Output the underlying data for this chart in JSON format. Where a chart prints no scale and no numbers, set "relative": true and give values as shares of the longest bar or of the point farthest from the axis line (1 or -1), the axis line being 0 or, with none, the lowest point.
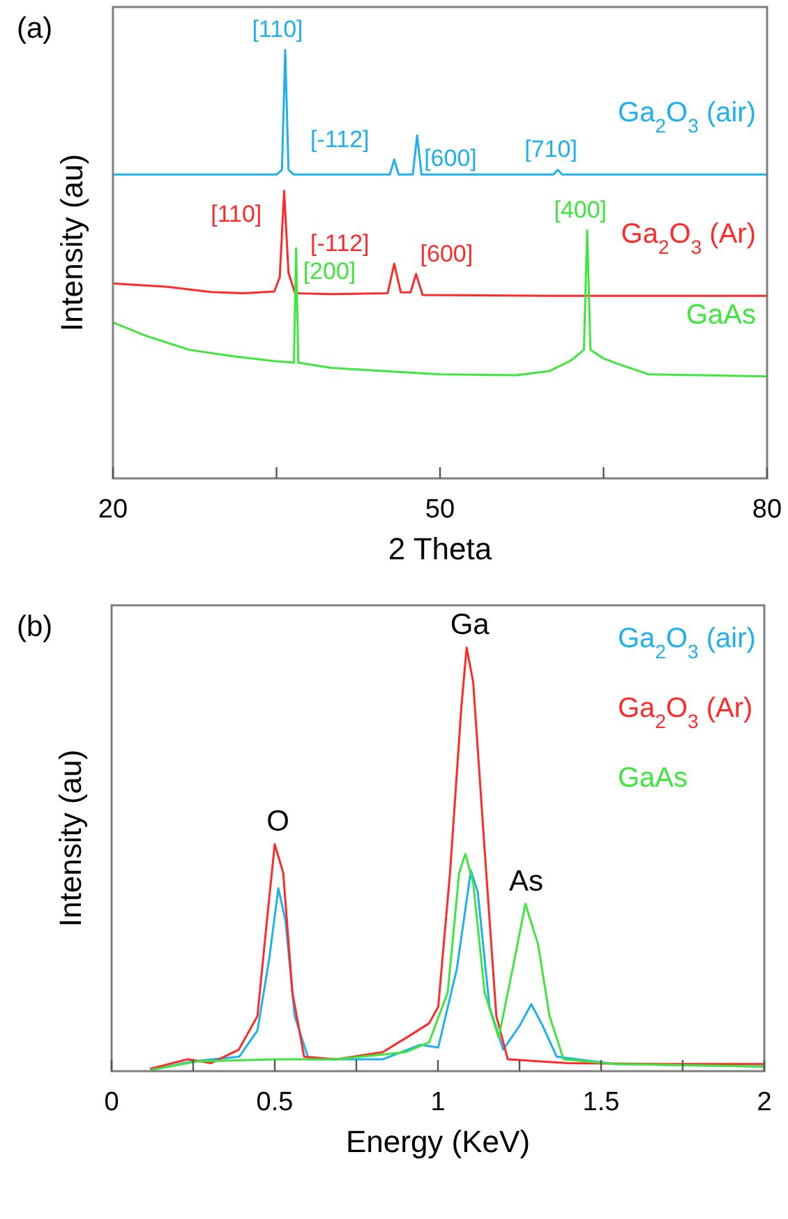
{
  "chart_data": [
    {
      "type": "line",
      "title": "(a)",
      "xlabel": "2 Theta",
      "ylabel": "Intensity (au)",
      "relative": true,
      "xlim": [
        20,
        80
      ],
      "xticks": [
        20,
        {
          "value": 35,
          "label": null
        },
        50,
        {
          "value": 65,
          "label": null
        },
        80
      ],
      "line_style": "solid",
      "marker": "none",
      "series": [
        {
          "name": "Ga$_{2}$O$_{3}$ (air)",
          "color": "#1fb0ee",
          "x": [
            20,
            35.0,
            35.5,
            35.8,
            36.1,
            36.6,
            45.4,
            45.8,
            46.2,
            47.5,
            47.9,
            48.3,
            60.4,
            60.8,
            61.2,
            80
          ],
          "values": [
            0.709,
            0.709,
            0.72,
            1.0,
            0.72,
            0.709,
            0.709,
            0.744,
            0.709,
            0.709,
            0.8,
            0.709,
            0.709,
            0.72,
            0.709,
            0.709
          ]
        },
        {
          "name": "Ga$_{2}$O$_{3}$ (Ar)",
          "color": "#ff2a2a",
          "x": [
            20,
            25,
            29,
            32,
            34.8,
            35.3,
            35.7,
            36.1,
            36.7,
            40,
            45.2,
            45.8,
            46.4,
            47.3,
            47.8,
            48.4,
            60,
            80
          ],
          "values": [
            0.455,
            0.447,
            0.435,
            0.432,
            0.436,
            0.47,
            0.671,
            0.48,
            0.432,
            0.43,
            0.432,
            0.501,
            0.434,
            0.434,
            0.477,
            0.428,
            0.426,
            0.426
          ]
        },
        {
          "name": "GaAs",
          "color": "#3ee63e",
          "x": [
            20,
            23,
            27,
            31,
            34.6,
            36.6,
            36.8,
            37.0,
            40,
            45,
            50,
            57,
            60,
            62,
            63.2,
            63.5,
            63.8,
            65,
            66.1,
            69.1,
            80
          ],
          "values": [
            0.364,
            0.333,
            0.3,
            0.285,
            0.274,
            0.27,
            0.537,
            0.27,
            0.258,
            0.25,
            0.243,
            0.241,
            0.25,
            0.275,
            0.3,
            0.579,
            0.3,
            0.28,
            0.269,
            0.243,
            0.238
          ]
        }
      ],
      "annotations": [
        {
          "text": "[110]",
          "x": 35.8,
          "y": 1.0
        },
        {
          "text": "[-112]",
          "x": 45.8,
          "y": 0.744
        },
        {
          "text": "[600]",
          "x": 47.9,
          "y": 0.8
        },
        {
          "text": "[710]",
          "x": 60.8,
          "y": 0.72
        },
        {
          "text": "[110]",
          "x": 35.7,
          "y": 0.671
        },
        {
          "text": "[-112]",
          "x": 45.8,
          "y": 0.501
        },
        {
          "text": "[600]",
          "x": 47.8,
          "y": 0.477
        },
        {
          "text": "[200]",
          "x": 36.8,
          "y": 0.537
        },
        {
          "text": "[400]",
          "x": 63.5,
          "y": 0.579
        }
      ]
    },
    {
      "type": "line",
      "title": "(b)",
      "xlabel": "Energy  (KeV)",
      "ylabel": "Intensity  (au)",
      "relative": true,
      "xlim": [
        0,
        2
      ],
      "xticks": [
        0,
        {
          "value": 0.25,
          "label": null
        },
        0.5,
        {
          "value": 0.75,
          "label": null
        },
        1,
        {
          "value": 1.25,
          "label": null
        },
        1.5,
        {
          "value": 1.75,
          "label": null
        },
        2
      ],
      "legend": "top right",
      "line_style": "solid",
      "marker": "none",
      "series": [
        {
          "name": "Ga$_{2}$O$_{3}$ (air)",
          "color": "#1fb0ee",
          "x": [
            0.121,
            0.249,
            0.391,
            0.447,
            0.483,
            0.511,
            0.533,
            0.561,
            0.604,
            0.831,
            0.945,
            1.001,
            1.058,
            1.101,
            1.122,
            1.158,
            1.2,
            1.25,
            1.286,
            1.321,
            1.364,
            1.541,
            1.996
          ],
          "values": [
            0.003,
            0.023,
            0.034,
            0.096,
            0.265,
            0.432,
            0.355,
            0.13,
            0.028,
            0.028,
            0.062,
            0.056,
            0.242,
            0.474,
            0.423,
            0.152,
            0.051,
            0.107,
            0.158,
            0.107,
            0.034,
            0.017,
            0.011
          ]
        },
        {
          "name": "Ga$_{2}$O$_{3}$ (Ar)",
          "color": "#ff2a2a",
          "x": [
            0.12,
            0.234,
            0.305,
            0.39,
            0.447,
            0.476,
            0.5,
            0.526,
            0.554,
            0.59,
            0.689,
            0.831,
            0.916,
            0.973,
            1.001,
            1.037,
            1.072,
            1.088,
            1.108,
            1.143,
            1.179,
            1.214,
            1.399,
            1.683,
            1.996
          ],
          "values": [
            0.006,
            0.028,
            0.019,
            0.051,
            0.13,
            0.355,
            0.536,
            0.468,
            0.186,
            0.034,
            0.028,
            0.045,
            0.085,
            0.113,
            0.152,
            0.468,
            0.862,
            1.0,
            0.919,
            0.524,
            0.13,
            0.028,
            0.019,
            0.017,
            0.017
          ]
        },
        {
          "name": "GaAs",
          "color": "#3ee63e",
          "x": [
            0.121,
            0.263,
            0.5,
            0.689,
            0.902,
            0.973,
            1.03,
            1.065,
            1.084,
            1.108,
            1.143,
            1.186,
            1.229,
            1.268,
            1.307,
            1.342,
            1.385,
            1.541,
            1.996
          ],
          "values": [
            0.003,
            0.023,
            0.028,
            0.028,
            0.045,
            0.068,
            0.186,
            0.468,
            0.513,
            0.445,
            0.186,
            0.079,
            0.242,
            0.395,
            0.299,
            0.13,
            0.028,
            0.017,
            0.011
          ]
        }
      ],
      "annotations": [
        {
          "text": "O",
          "x": 0.5,
          "y": 0.536
        },
        {
          "text": "Ga",
          "x": 1.088,
          "y": 1.0
        },
        {
          "text": "As",
          "x": 1.268,
          "y": 0.395
        }
      ]
    }
  ]
}
